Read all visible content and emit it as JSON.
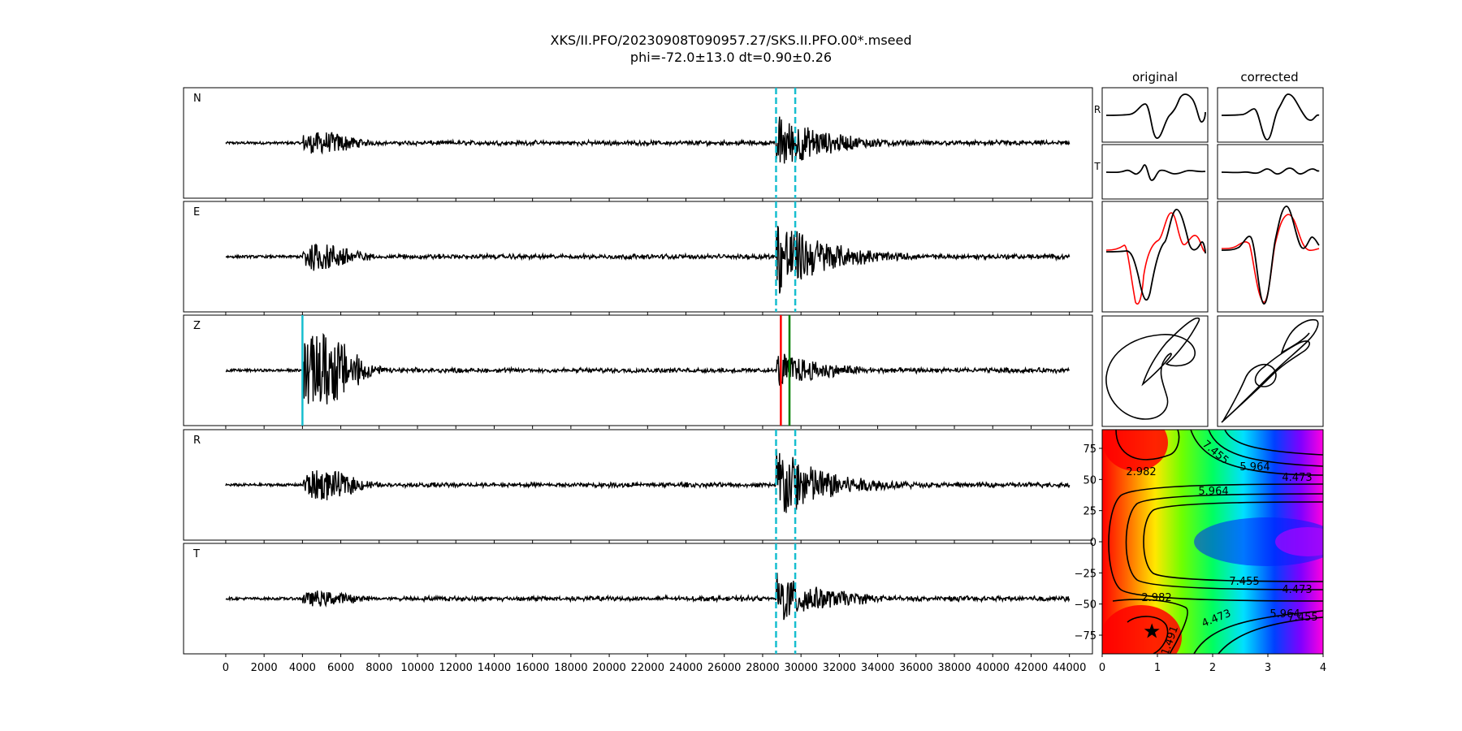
{
  "title": {
    "line1": "XKS/II.PFO/20230908T090957.27/SKS.II.PFO.00*.mseed",
    "line2": "phi=-72.0±13.0 dt=0.90±0.26"
  },
  "small_panels": {
    "col_original": "original",
    "col_corrected": "corrected",
    "row_r_label": "R",
    "row_t_label": "T"
  },
  "chart_data": [
    {
      "type": "line",
      "name": "waveforms",
      "xlim": [
        -2200,
        45200
      ],
      "x_ticks": [
        0,
        2000,
        4000,
        6000,
        8000,
        10000,
        12000,
        14000,
        16000,
        18000,
        20000,
        22000,
        24000,
        26000,
        28000,
        30000,
        32000,
        34000,
        36000,
        38000,
        40000,
        42000,
        44000
      ],
      "trace_span": [
        0,
        44000
      ],
      "traces": [
        {
          "label": "N",
          "noise": 0.05,
          "p_amp": 0.22,
          "s_amp": 0.55,
          "windows": true
        },
        {
          "label": "E",
          "noise": 0.05,
          "p_amp": 0.28,
          "s_amp": 0.75,
          "windows": true
        },
        {
          "label": "Z",
          "noise": 0.05,
          "p_amp": 0.75,
          "s_amp": 0.35,
          "windows": false
        },
        {
          "label": "R",
          "noise": 0.05,
          "p_amp": 0.3,
          "s_amp": 0.75,
          "windows": true
        },
        {
          "label": "T",
          "noise": 0.05,
          "p_amp": 0.15,
          "s_amp": 0.5,
          "windows": true
        }
      ],
      "window_lines": [
        28700,
        29700
      ],
      "picks": [
        {
          "name": "p-pick",
          "x": 4000,
          "color": "#17becf"
        },
        {
          "name": "s-pick-red",
          "x": 28950,
          "color": "#ff0000"
        },
        {
          "name": "s-pick-green",
          "x": 29400,
          "color": "#008000"
        }
      ],
      "colors": {
        "trace": "#000000",
        "window": "#17becf"
      }
    },
    {
      "type": "heatmap",
      "name": "phi-dt-grid",
      "xlabel": "",
      "ylabel": "",
      "xlim": [
        0,
        4
      ],
      "ylim": [
        -90,
        90
      ],
      "x_ticks": [
        0,
        1,
        2,
        3,
        4
      ],
      "y_ticks": [
        75,
        50,
        25,
        0,
        -25,
        -50,
        -75
      ],
      "best": {
        "dt": 0.9,
        "phi": -72.0
      },
      "contour_levels": [
        "1.491",
        "2.982",
        "4.473",
        "5.964",
        "7.455"
      ],
      "colormap": "gist_rainbow"
    }
  ]
}
